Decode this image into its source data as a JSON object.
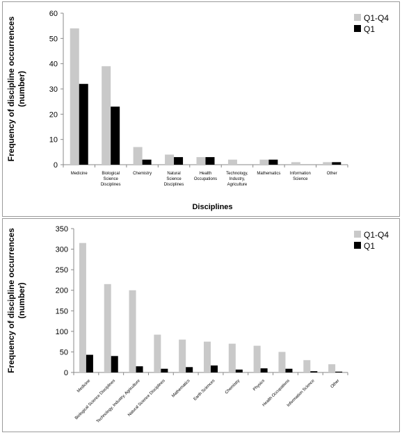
{
  "chart_data": [
    {
      "type": "bar",
      "ylabel": "Frequency of discipline occurrences (number)",
      "ylabel_lines": [
        "Frequency of discipline occurrences",
        "(number)"
      ],
      "xlabel": "Disciplines",
      "categories": [
        [
          "Medicine"
        ],
        [
          "Biological",
          "Science",
          "Disciplines"
        ],
        [
          "Chemistry"
        ],
        [
          "Natural",
          "Science",
          "Disciplines"
        ],
        [
          "Health",
          "Occupations"
        ],
        [
          "Technology,",
          "Industry,",
          "Agriculture"
        ],
        [
          "Mathematics"
        ],
        [
          "Information",
          "Science"
        ],
        [
          "Other"
        ]
      ],
      "series": [
        {
          "name": "Q1-Q4",
          "color": "#c9c9c9",
          "values": [
            54,
            39,
            7,
            4,
            3,
            2,
            2,
            1,
            1
          ]
        },
        {
          "name": "Q1",
          "color": "#000000",
          "values": [
            32,
            23,
            2,
            3,
            3,
            0,
            2,
            0,
            1
          ]
        }
      ],
      "ylim": [
        0,
        60
      ],
      "yticks": [
        "0",
        "10",
        "20",
        "30",
        "40",
        "50",
        "60"
      ],
      "grid": false,
      "legend": "top-right"
    },
    {
      "type": "bar",
      "ylabel": "Frequency of discipline occurrences (number)",
      "ylabel_lines": [
        "Frequency of discipline occurrences",
        "(number)"
      ],
      "xlabel": "",
      "categories": [
        [
          "Medicine"
        ],
        [
          "Biological Science Disciplines"
        ],
        [
          "Technology, Industry, Agriculture"
        ],
        [
          "Natural Science Disciplines"
        ],
        [
          "Mathematics"
        ],
        [
          "Earth Sciences"
        ],
        [
          "Chemistry"
        ],
        [
          "Physics"
        ],
        [
          "Health Occupations"
        ],
        [
          "Information Science"
        ],
        [
          "Other"
        ]
      ],
      "series": [
        {
          "name": "Q1-Q4",
          "color": "#c9c9c9",
          "values": [
            315,
            215,
            200,
            92,
            80,
            75,
            70,
            65,
            50,
            30,
            20
          ]
        },
        {
          "name": "Q1",
          "color": "#000000",
          "values": [
            43,
            40,
            15,
            9,
            13,
            17,
            7,
            10,
            9,
            3,
            2
          ]
        }
      ],
      "ylim": [
        0,
        350
      ],
      "yticks": [
        "0",
        "50",
        "100",
        "150",
        "200",
        "250",
        "300",
        "350"
      ],
      "grid": false,
      "legend": "top-right"
    }
  ]
}
